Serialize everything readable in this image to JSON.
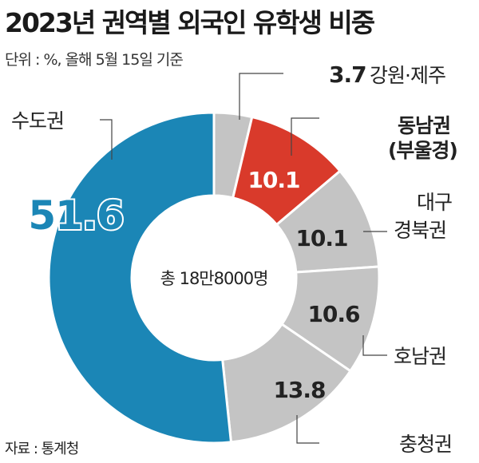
{
  "chart_data": {
    "type": "pie",
    "variant": "donut",
    "title": "2023년 권역별 외국인 유학생 비중",
    "subtitle": "단위 : %, 올해 5월 15일 기준",
    "source": "자료 : 통계청",
    "center_label": "총 18만8000명",
    "slices": [
      {
        "label": "강원·제주",
        "value": 3.7,
        "color": "#c4c4c4"
      },
      {
        "label": "동남권 (부울경)",
        "value": 10.1,
        "color": "#d93a2b"
      },
      {
        "label": "대구 경북권",
        "value": 10.1,
        "color": "#c4c4c4"
      },
      {
        "label": "호남권",
        "value": 10.6,
        "color": "#c4c4c4"
      },
      {
        "label": "충청권",
        "value": 13.8,
        "color": "#c4c4c4"
      },
      {
        "label": "수도권",
        "value": 51.6,
        "color": "#1b86b6"
      }
    ]
  }
}
